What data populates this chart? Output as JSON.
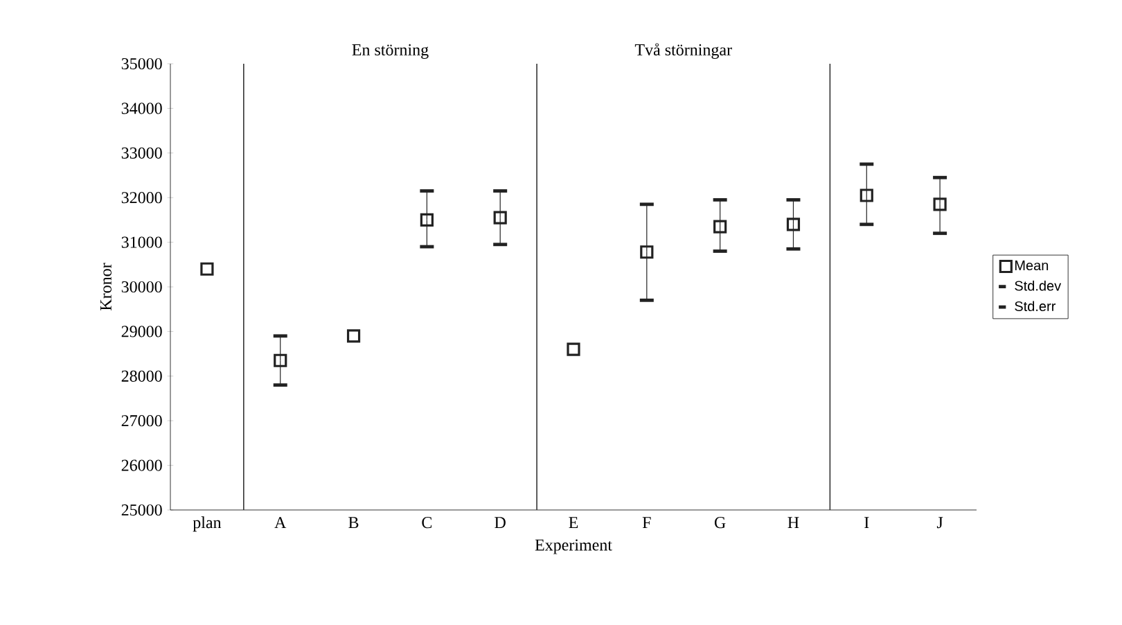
{
  "chart_data": {
    "type": "scatter",
    "xlabel": "Experiment",
    "ylabel": "Kronor",
    "categories": [
      "plan",
      "A",
      "B",
      "C",
      "D",
      "E",
      "F",
      "G",
      "H",
      "I",
      "J"
    ],
    "ylim": [
      25000,
      35000
    ],
    "yticks": [
      25000,
      26000,
      27000,
      28000,
      29000,
      30000,
      31000,
      32000,
      33000,
      34000,
      35000
    ],
    "marker": "square",
    "legend": "right",
    "grid": false,
    "series": [
      {
        "name": "Mean",
        "color": "#222222",
        "values": [
          30400,
          28350,
          28900,
          31500,
          31550,
          28600,
          30780,
          31350,
          31400,
          32050,
          31850
        ],
        "errors": [
          null,
          [
            27800,
            28900
          ],
          null,
          [
            30900,
            32150
          ],
          [
            30950,
            32150
          ],
          null,
          [
            29700,
            31850
          ],
          [
            30800,
            31950
          ],
          [
            30850,
            31950
          ],
          [
            31400,
            32750
          ],
          [
            31200,
            32450
          ]
        ]
      },
      {
        "name": "Std.dev",
        "color": "#222222",
        "marker": "none",
        "values": [
          null,
          null,
          null,
          null,
          null,
          null,
          null,
          null,
          null,
          null,
          null
        ]
      },
      {
        "name": "Std.err",
        "color": "#222222",
        "marker": "none",
        "values": [
          null,
          null,
          null,
          null,
          null,
          null,
          null,
          null,
          null,
          null,
          null
        ]
      }
    ],
    "annotations": [
      "En störning",
      "Två störningar"
    ]
  }
}
